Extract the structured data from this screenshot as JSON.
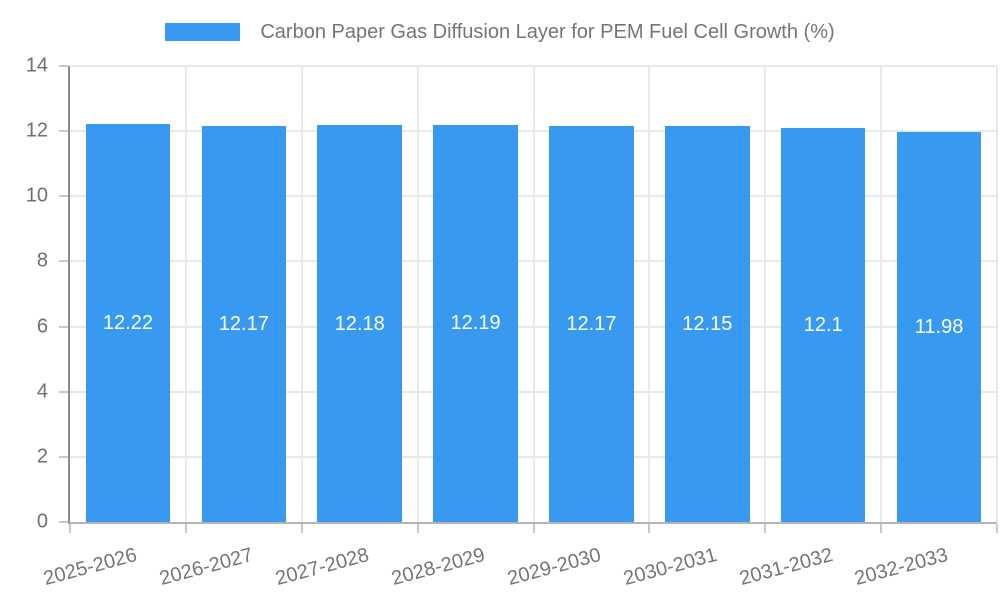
{
  "legend": {
    "label": "Carbon Paper Gas Diffusion Layer for PEM Fuel Cell Growth (%)"
  },
  "chart_data": {
    "type": "bar",
    "title": "Carbon Paper Gas Diffusion Layer for PEM Fuel Cell Growth (%)",
    "categories": [
      "2025-2026",
      "2026-2027",
      "2027-2028",
      "2028-2029",
      "2029-2030",
      "2030-2031",
      "2031-2032",
      "2032-2033"
    ],
    "values": [
      12.22,
      12.17,
      12.18,
      12.19,
      12.17,
      12.15,
      12.1,
      11.98
    ],
    "value_labels": [
      "12.22",
      "12.17",
      "12.18",
      "12.19",
      "12.17",
      "12.15",
      "12.1",
      "11.98"
    ],
    "xlabel": "",
    "ylabel": "",
    "ylim": [
      0,
      14
    ],
    "yticks": [
      0,
      2,
      4,
      6,
      8,
      10,
      12,
      14
    ],
    "grid": true,
    "legend_position": "top",
    "bar_color": "#3899f0",
    "value_label_color": "#ffffff"
  }
}
